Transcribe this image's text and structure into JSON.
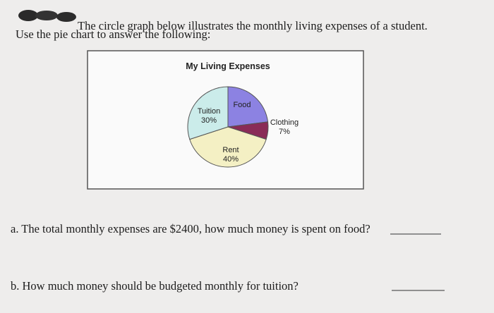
{
  "document": {
    "intro_line_1": "The circle graph below illustrates the monthly living expenses of a student.",
    "intro_line_2": "Use the pie chart to answer the following:",
    "question_a": "a. The total monthly expenses are $2400, how much money is spent on food?",
    "question_b": "b. How much money should be budgeted monthly for tuition?"
  },
  "chart_data": {
    "type": "pie",
    "title": "My Living Expenses",
    "categories": [
      "Food",
      "Clothing",
      "Rent",
      "Tuition"
    ],
    "values": [
      23,
      7,
      40,
      30
    ],
    "value_labels": [
      null,
      "7%",
      "40%",
      "30%"
    ],
    "colors": [
      "#8c82e2",
      "#8a2b57",
      "#f4f0c4",
      "#cbecea"
    ]
  }
}
